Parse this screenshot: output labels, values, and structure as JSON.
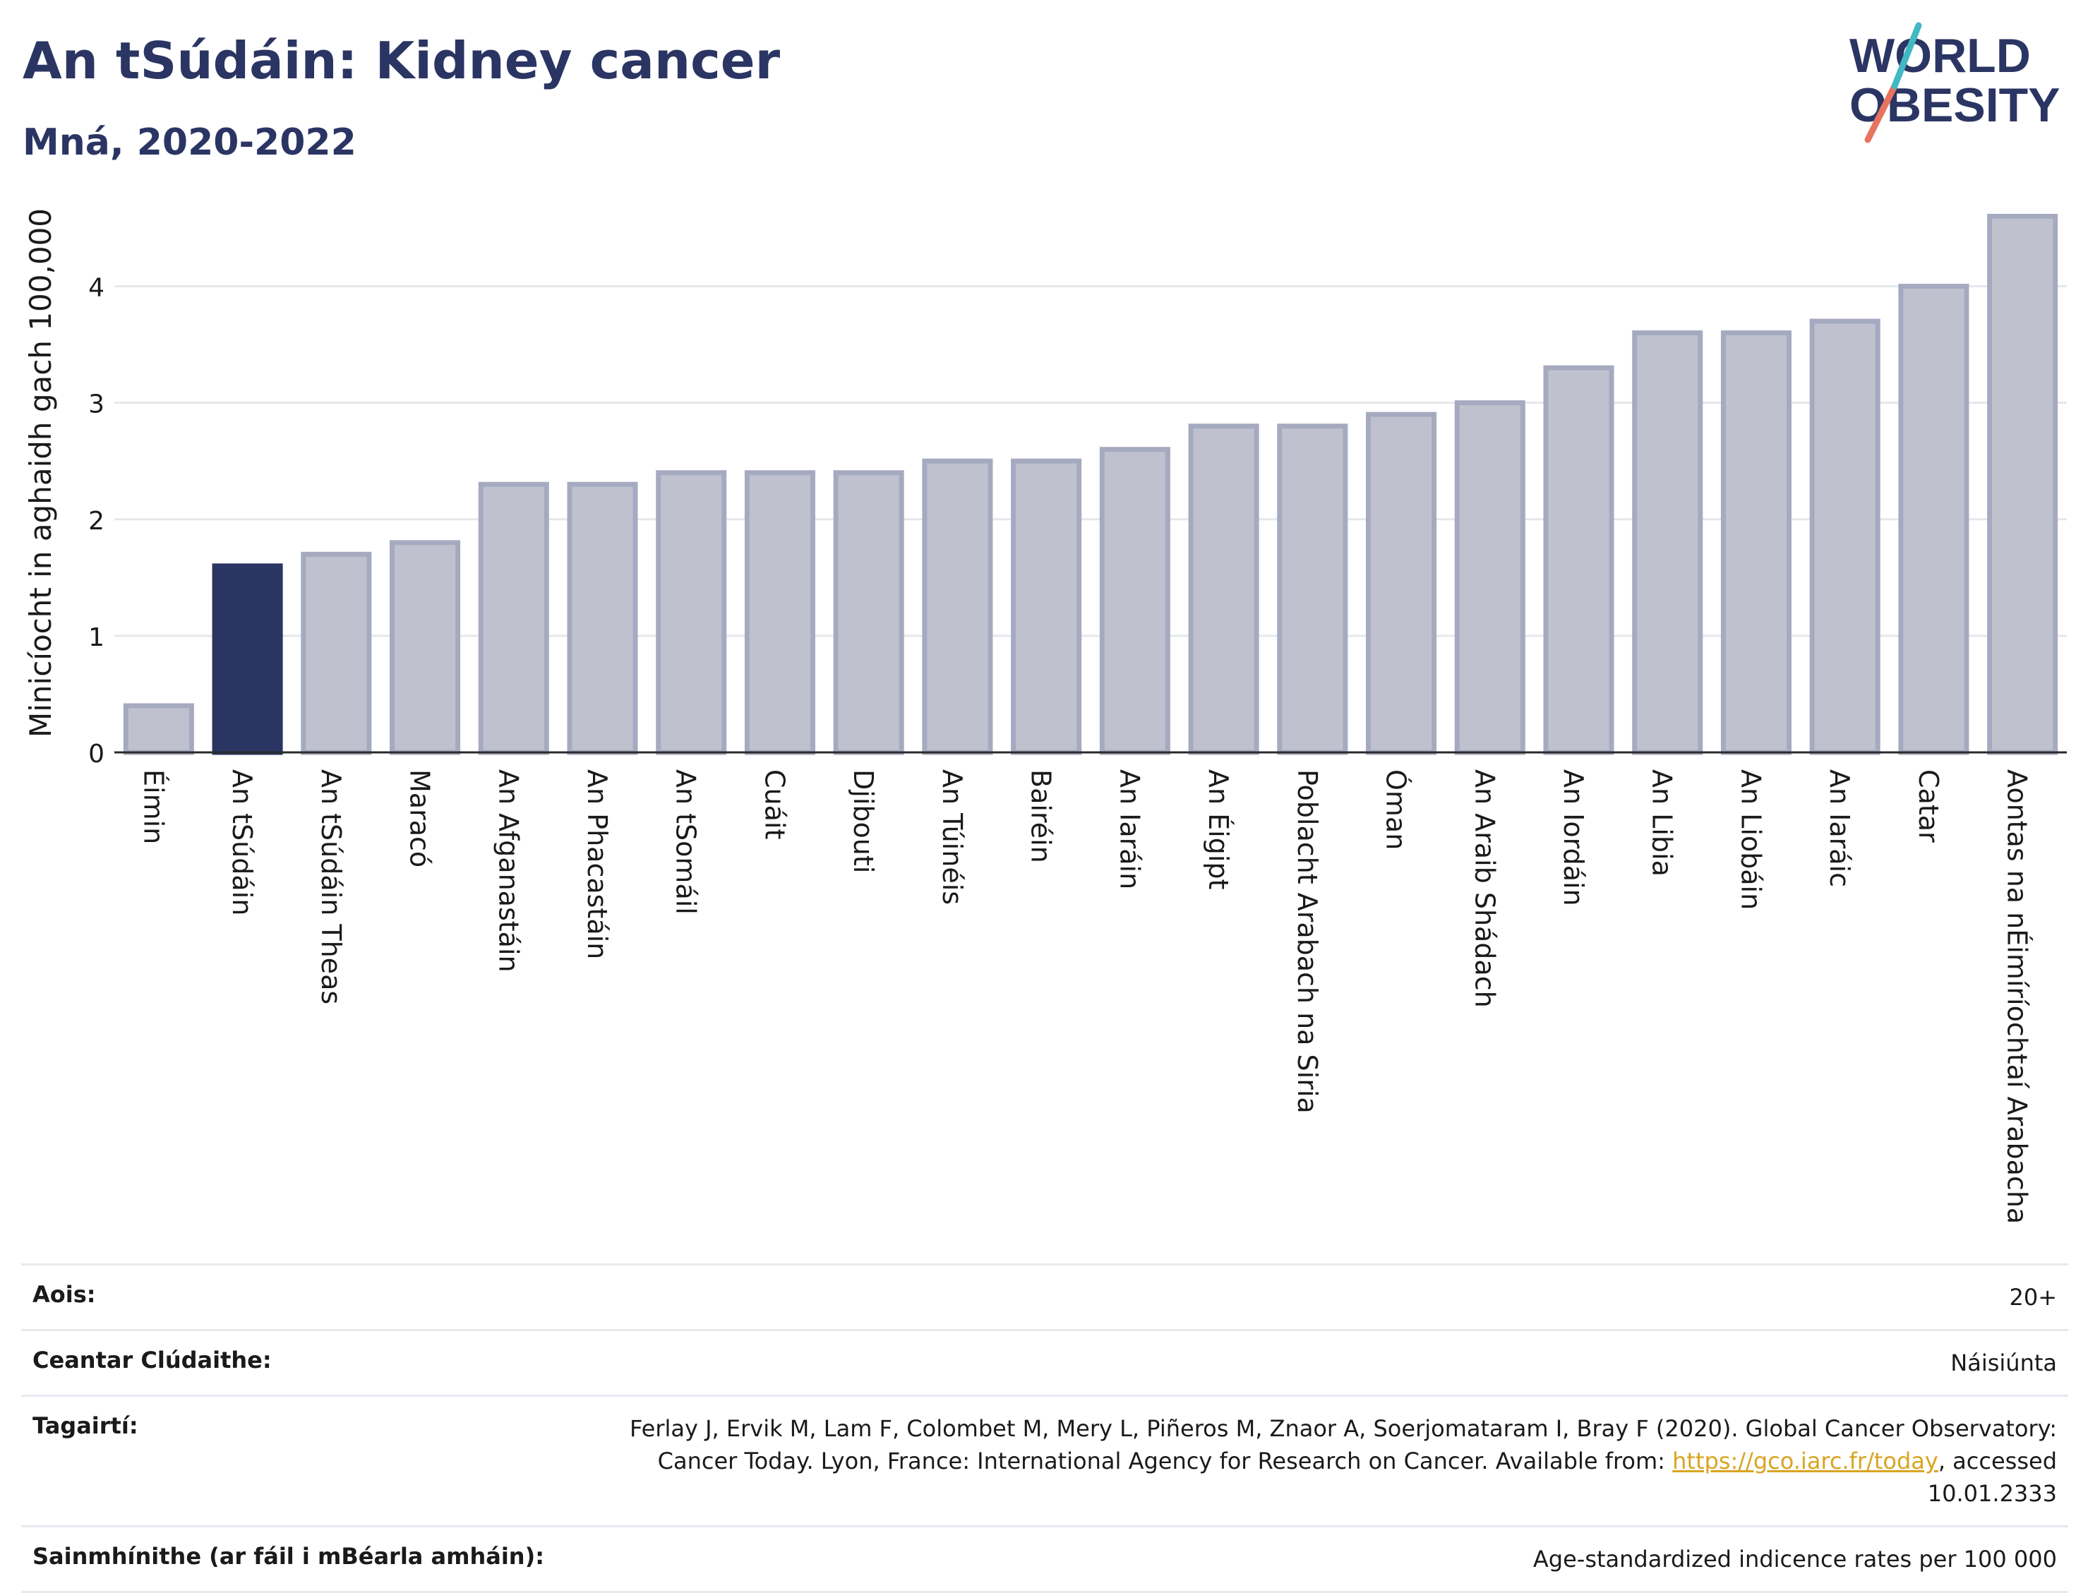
{
  "header": {
    "title": "An tSúdáin: Kidney cancer",
    "subtitle": "Mná, 2020-2022"
  },
  "logo": {
    "line1": "WORLD",
    "line2": "OBESITY"
  },
  "chart_data": {
    "type": "bar",
    "ylabel": "Minicíocht in aghaidh gach 100,000",
    "ylim": [
      0,
      4.7
    ],
    "yticks": [
      0,
      1,
      2,
      3,
      4
    ],
    "grid": true,
    "categories": [
      "Éimin",
      "An tSúdáin",
      "An tSúdáin Theas",
      "Maracó",
      "An Afganastáin",
      "An Phacastáin",
      "An tSomáil",
      "Cuáit",
      "Djibouti",
      "An Túinéis",
      "Bairéin",
      "An Iaráin",
      "An Éigipt",
      "Poblacht Arabach na Siria",
      "Óman",
      "An Araib Shádach",
      "An Iordáin",
      "An Libia",
      "An Liobáin",
      "An Iaráic",
      "Catar",
      "Aontas na nÉimíríochtaí Arabacha"
    ],
    "values": [
      0.4,
      1.6,
      1.7,
      1.8,
      2.3,
      2.3,
      2.4,
      2.4,
      2.4,
      2.5,
      2.5,
      2.6,
      2.8,
      2.8,
      2.9,
      3.0,
      3.3,
      3.6,
      3.6,
      3.7,
      4.0,
      4.6
    ],
    "highlight": "An tSúdáin",
    "colors": {
      "highlight": "#2b3563",
      "bar_fill": "#bfc2ce",
      "bar_stroke": "#a6aac0",
      "grid": "#e5e7ec",
      "axis": "#2a2a2a"
    }
  },
  "info": {
    "rows": [
      {
        "label": "Aois:",
        "value": "20+"
      },
      {
        "label": "Ceantar Clúdaithe:",
        "value": "Náisiúnta"
      },
      {
        "label": "Tagairtí:",
        "value_pre": "Ferlay J, Ervik M, Lam F, Colombet M, Mery L, Piñeros M, Znaor A, Soerjomataram I, Bray F (2020). Global Cancer Observatory: Cancer Today. Lyon, France: International Agency for Research on Cancer. Available from: ",
        "link": "https://gco.iarc.fr/today",
        "value_post": ", accessed 10.01.2333"
      },
      {
        "label": "Sainmhínithe (ar fáil i mBéarla amháin):",
        "value": "Age-standardized indicence rates per 100 000"
      }
    ]
  }
}
